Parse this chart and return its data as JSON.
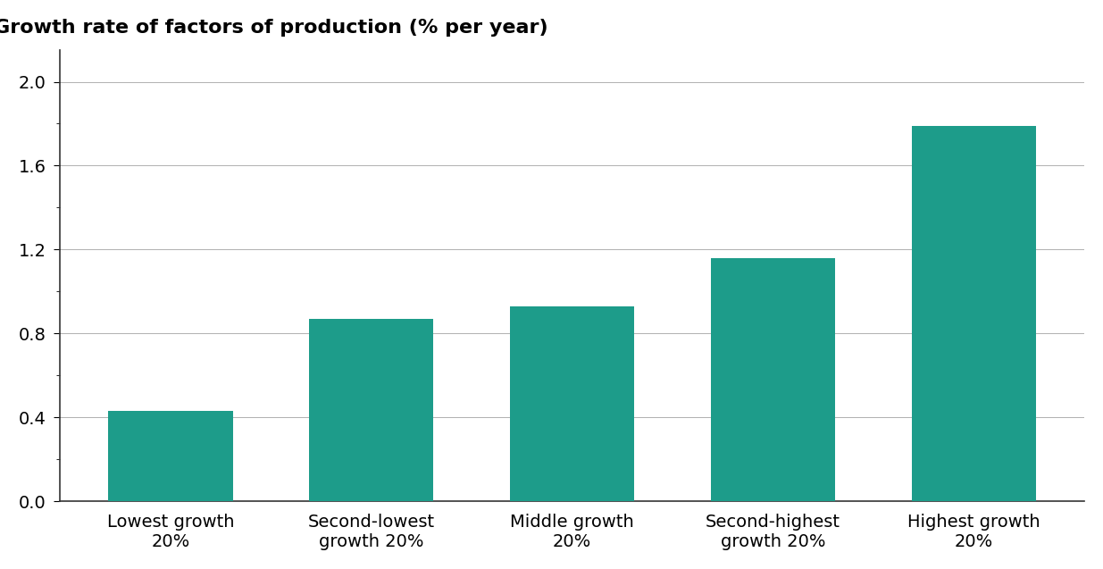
{
  "categories": [
    "Lowest growth\n20%",
    "Second-lowest\ngrowth 20%",
    "Middle growth\n20%",
    "Second-highest\ngrowth 20%",
    "Highest growth\n20%"
  ],
  "values": [
    0.43,
    0.87,
    0.93,
    1.16,
    1.79
  ],
  "bar_color": "#1d9c8a",
  "ylabel": "Growth rate of factors of production (% per year)",
  "ylim": [
    0.0,
    2.15
  ],
  "yticks": [
    0.0,
    0.4,
    0.8,
    1.2,
    1.6,
    2.0
  ],
  "background_color": "#ffffff",
  "title_fontsize": 16,
  "tick_fontsize": 14,
  "bar_width": 0.62
}
